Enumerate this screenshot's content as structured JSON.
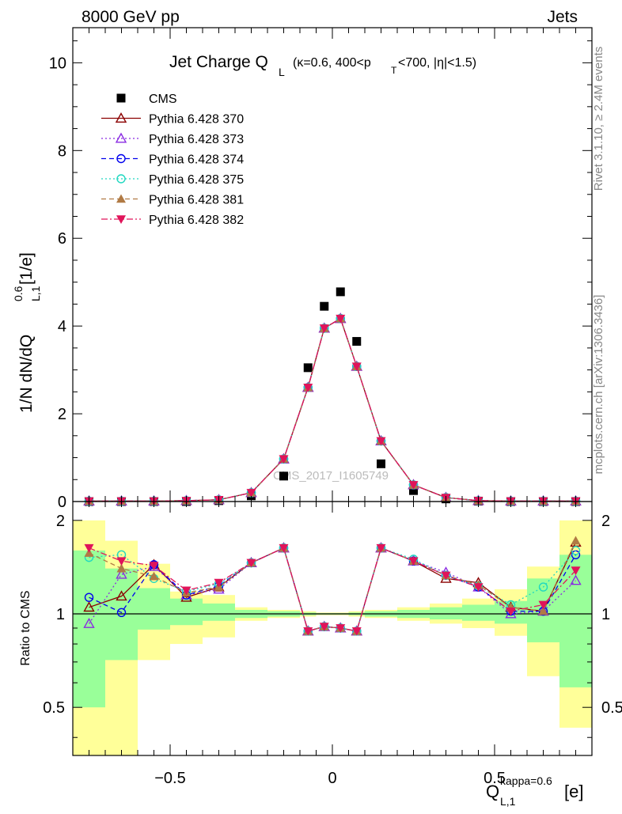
{
  "header": {
    "energy_label": "8000 GeV pp",
    "category_label": "Jets"
  },
  "side_labels": {
    "rivet": "Rivet 3.1.10, ≥ 2.4M events",
    "mcplots": "mcplots.cern.ch [arXiv:1306.3436]"
  },
  "watermark": "CMS_2017_I1605749",
  "colors": {
    "data": "#000000",
    "p370": "#8b0000",
    "p373": "#8a2be2",
    "p374": "#0000ee",
    "p375": "#20d8c0",
    "p381": "#b07a44",
    "p382": "#e0145a",
    "band_outer": "#ffff99",
    "band_inner": "#99ff99"
  },
  "chart_data": [
    {
      "type": "scatter",
      "panel": "main",
      "title_main": "Jet Charge Q",
      "title_sub": "L",
      "title_cuts": "(κ=0.6, 400<p",
      "title_cuts_sub": "T",
      "title_cuts_end": "<700, |η|<1.5)",
      "ylabel": "1/N dN/dQ",
      "ylabel_sup": "0.6",
      "ylabel_sub": "L,1",
      "ylabel_unit": " [1/e]",
      "xlim": [
        -0.8,
        0.8
      ],
      "ylim": [
        0,
        10.8
      ],
      "yticks": [
        0,
        2,
        4,
        6,
        8,
        10
      ],
      "legend_position": "top-left",
      "x": [
        -0.75,
        -0.65,
        -0.55,
        -0.45,
        -0.35,
        -0.25,
        -0.15,
        -0.075,
        -0.025,
        0.025,
        0.075,
        0.15,
        0.25,
        0.35,
        0.45,
        0.55,
        0.65,
        0.75
      ],
      "series": [
        {
          "name": "CMS",
          "key": "data",
          "marker": "square",
          "dash": "none",
          "values": [
            0.0,
            0.0,
            0.0,
            0.0,
            0.02,
            0.13,
            0.58,
            3.05,
            4.45,
            4.78,
            3.65,
            0.86,
            0.25,
            0.06,
            0.01,
            0.0,
            0.0,
            0.0
          ]
        },
        {
          "name": "Pythia 6.428 370",
          "key": "p370",
          "marker": "triangle-open",
          "dash": "solid",
          "values": [
            0.01,
            0.01,
            0.01,
            0.02,
            0.04,
            0.2,
            0.97,
            2.6,
            3.95,
            4.17,
            3.08,
            1.38,
            0.38,
            0.09,
            0.02,
            0.01,
            0.01,
            0.01
          ]
        },
        {
          "name": "Pythia 6.428 373",
          "key": "p373",
          "marker": "triangle-open",
          "dash": "dotted",
          "values": [
            0.01,
            0.01,
            0.01,
            0.02,
            0.04,
            0.2,
            0.97,
            2.6,
            3.95,
            4.17,
            3.08,
            1.38,
            0.38,
            0.09,
            0.02,
            0.01,
            0.01,
            0.01
          ]
        },
        {
          "name": "Pythia 6.428 374",
          "key": "p374",
          "marker": "circle-open",
          "dash": "dashed",
          "values": [
            0.01,
            0.01,
            0.01,
            0.02,
            0.04,
            0.2,
            0.97,
            2.6,
            3.95,
            4.17,
            3.08,
            1.38,
            0.38,
            0.09,
            0.02,
            0.01,
            0.01,
            0.01
          ]
        },
        {
          "name": "Pythia 6.428 375",
          "key": "p375",
          "marker": "circle-open",
          "dash": "dotted",
          "values": [
            0.01,
            0.01,
            0.01,
            0.02,
            0.04,
            0.2,
            0.97,
            2.6,
            3.95,
            4.17,
            3.08,
            1.38,
            0.38,
            0.09,
            0.02,
            0.01,
            0.01,
            0.01
          ]
        },
        {
          "name": "Pythia 6.428 381",
          "key": "p381",
          "marker": "triangle-filled",
          "dash": "dashed",
          "values": [
            0.01,
            0.01,
            0.01,
            0.02,
            0.04,
            0.2,
            0.97,
            2.6,
            3.95,
            4.17,
            3.08,
            1.38,
            0.38,
            0.09,
            0.02,
            0.01,
            0.01,
            0.01
          ]
        },
        {
          "name": "Pythia 6.428 382",
          "key": "p382",
          "marker": "triangle-down-filled",
          "dash": "dashdot",
          "values": [
            0.01,
            0.01,
            0.01,
            0.02,
            0.04,
            0.2,
            0.97,
            2.6,
            3.95,
            4.17,
            3.08,
            1.38,
            0.38,
            0.09,
            0.02,
            0.01,
            0.01,
            0.01
          ]
        }
      ]
    },
    {
      "type": "line",
      "panel": "ratio",
      "ylabel": "Ratio to CMS",
      "xlabel": "Q",
      "xlabel_sup": "kappa=0.6",
      "xlabel_sub": "L,1",
      "xlabel_unit": " [e]",
      "xlim": [
        -0.8,
        0.8
      ],
      "ylim": [
        0.35,
        2.3
      ],
      "yticks": [
        0.5,
        1,
        2
      ],
      "xticks": [
        -0.5,
        0,
        0.5
      ],
      "bins": [
        [
          -0.8,
          -0.7
        ],
        [
          -0.7,
          -0.6
        ],
        [
          -0.6,
          -0.5
        ],
        [
          -0.5,
          -0.4
        ],
        [
          -0.4,
          -0.3
        ],
        [
          -0.3,
          -0.2
        ],
        [
          -0.2,
          -0.1
        ],
        [
          -0.1,
          -0.05
        ],
        [
          -0.05,
          0.0
        ],
        [
          0.0,
          0.05
        ],
        [
          0.05,
          0.1
        ],
        [
          0.1,
          0.2
        ],
        [
          0.2,
          0.3
        ],
        [
          0.3,
          0.4
        ],
        [
          0.4,
          0.5
        ],
        [
          0.5,
          0.6
        ],
        [
          0.6,
          0.7
        ],
        [
          0.7,
          0.8
        ]
      ],
      "band_outer": [
        [
          0.35,
          2.0
        ],
        [
          0.35,
          1.72
        ],
        [
          0.71,
          1.45
        ],
        [
          0.8,
          1.18
        ],
        [
          0.84,
          1.15
        ],
        [
          0.95,
          1.05
        ],
        [
          0.97,
          1.03
        ],
        [
          0.98,
          1.02
        ],
        [
          0.99,
          1.01
        ],
        [
          0.99,
          1.01
        ],
        [
          0.98,
          1.02
        ],
        [
          0.97,
          1.03
        ],
        [
          0.95,
          1.05
        ],
        [
          0.93,
          1.08
        ],
        [
          0.9,
          1.12
        ],
        [
          0.85,
          1.2
        ],
        [
          0.63,
          1.42
        ],
        [
          0.43,
          2.0
        ]
      ],
      "band_inner": [
        [
          0.5,
          1.6
        ],
        [
          0.71,
          1.4
        ],
        [
          0.89,
          1.21
        ],
        [
          0.92,
          1.12
        ],
        [
          0.95,
          1.08
        ],
        [
          0.97,
          1.03
        ],
        [
          0.98,
          1.02
        ],
        [
          0.99,
          1.01
        ],
        [
          0.995,
          1.005
        ],
        [
          0.995,
          1.005
        ],
        [
          0.99,
          1.01
        ],
        [
          0.98,
          1.02
        ],
        [
          0.97,
          1.03
        ],
        [
          0.96,
          1.05
        ],
        [
          0.95,
          1.07
        ],
        [
          0.93,
          1.1
        ],
        [
          0.81,
          1.3
        ],
        [
          0.58,
          1.55
        ]
      ],
      "x": [
        -0.75,
        -0.65,
        -0.55,
        -0.45,
        -0.35,
        -0.25,
        -0.15,
        -0.075,
        -0.025,
        0.025,
        0.075,
        0.15,
        0.25,
        0.35,
        0.45,
        0.55,
        0.65,
        0.75
      ],
      "series": [
        {
          "name": "Pythia 6.428 370",
          "key": "p370",
          "values": [
            1.05,
            1.14,
            1.44,
            1.13,
            1.22,
            1.46,
            1.63,
            0.88,
            0.91,
            0.9,
            0.88,
            1.63,
            1.48,
            1.3,
            1.26,
            1.05,
            1.02,
            1.7
          ]
        },
        {
          "name": "Pythia 6.428 373",
          "key": "p373",
          "values": [
            0.93,
            1.34,
            1.42,
            1.15,
            1.2,
            1.46,
            1.63,
            0.88,
            0.91,
            0.9,
            0.88,
            1.63,
            1.48,
            1.36,
            1.22,
            1.0,
            1.02,
            1.28
          ]
        },
        {
          "name": "Pythia 6.428 374",
          "key": "p374",
          "values": [
            1.13,
            1.01,
            1.44,
            1.15,
            1.23,
            1.46,
            1.63,
            0.88,
            0.91,
            0.9,
            0.88,
            1.63,
            1.48,
            1.33,
            1.22,
            1.02,
            1.02,
            1.55
          ]
        },
        {
          "name": "Pythia 6.428 375",
          "key": "p375",
          "values": [
            1.52,
            1.55,
            1.3,
            1.18,
            1.25,
            1.46,
            1.63,
            0.88,
            0.91,
            0.9,
            0.88,
            1.63,
            1.5,
            1.33,
            1.23,
            1.07,
            1.22,
            1.6
          ]
        },
        {
          "name": "Pythia 6.428 381",
          "key": "p381",
          "values": [
            1.57,
            1.4,
            1.32,
            1.17,
            1.22,
            1.46,
            1.63,
            0.88,
            0.91,
            0.9,
            0.88,
            1.63,
            1.48,
            1.33,
            1.24,
            1.05,
            1.02,
            1.72
          ]
        },
        {
          "name": "Pythia 6.428 382",
          "key": "p382",
          "values": [
            1.63,
            1.48,
            1.43,
            1.19,
            1.26,
            1.46,
            1.63,
            0.88,
            0.91,
            0.9,
            0.88,
            1.63,
            1.48,
            1.33,
            1.22,
            1.02,
            1.07,
            1.38
          ]
        }
      ]
    }
  ]
}
